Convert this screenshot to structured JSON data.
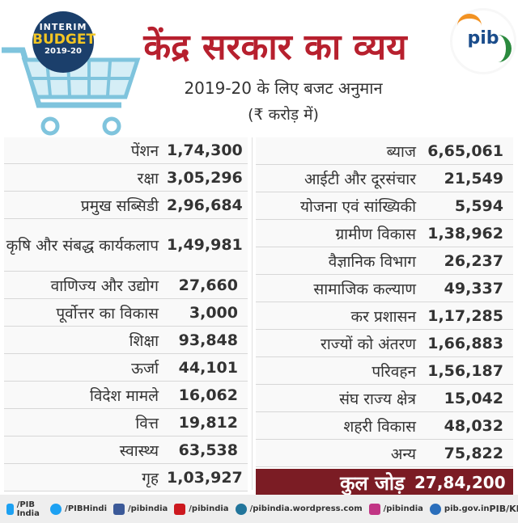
{
  "header": {
    "badge_line1": "INTERIM",
    "badge_line2": "BUDGET",
    "badge_line3": "2019-20",
    "title": "केंद्र सरकार का व्यय",
    "subtitle": "2019-20 के लिए बजट अनुमान",
    "unit": "(₹ करोड़ में)",
    "logo_text": "pib"
  },
  "left_rows": [
    {
      "label": "पेंशन",
      "value": "1,74,300"
    },
    {
      "label": "रक्षा",
      "value": "3,05,296"
    },
    {
      "label": "प्रमुख सब्सिडी",
      "value": "2,96,684"
    },
    {
      "label": "कृषि और संबद्ध कार्यकलाप",
      "value": "1,49,981"
    },
    {
      "label": "वाणिज्य और उद्योग",
      "value": "27,660"
    },
    {
      "label": "पूर्वोत्तर का विकास",
      "value": "3,000"
    },
    {
      "label": "शिक्षा",
      "value": "93,848"
    },
    {
      "label": "ऊर्जा",
      "value": "44,101"
    },
    {
      "label": "विदेश मामले",
      "value": "16,062"
    },
    {
      "label": "वित्त",
      "value": "19,812"
    },
    {
      "label": "स्वास्थ्य",
      "value": "63,538"
    },
    {
      "label": "गृह",
      "value": "1,03,927"
    }
  ],
  "right_rows": [
    {
      "label": "ब्याज",
      "value": "6,65,061"
    },
    {
      "label": "आईटी और दूरसंचार",
      "value": "21,549"
    },
    {
      "label": "योजना एवं सांख्यिकी",
      "value": "5,594"
    },
    {
      "label": "ग्रामीण विकास",
      "value": "1,38,962"
    },
    {
      "label": "वैज्ञानिक विभाग",
      "value": "26,237"
    },
    {
      "label": "सामाजिक कल्याण",
      "value": "49,337"
    },
    {
      "label": "कर प्रशासन",
      "value": "1,17,285"
    },
    {
      "label": "राज्यों को अंतरण",
      "value": "1,66,883"
    },
    {
      "label": "परिवहन",
      "value": "1,56,187"
    },
    {
      "label": "संघ राज्य क्षेत्र",
      "value": "15,042"
    },
    {
      "label": "शहरी विकास",
      "value": "48,032"
    },
    {
      "label": "अन्य",
      "value": "75,822"
    }
  ],
  "total": {
    "label": "कुल जोड़",
    "value": "27,84,200"
  },
  "footer": {
    "items": [
      "/PIB India",
      "/PIBHindi",
      "/pibindia",
      "/pibindia",
      "/pibindia.wordpress.com",
      "/pibindia",
      "pib.gov.in"
    ],
    "credit": "PIB/KBK"
  },
  "colors": {
    "title": "#b7202e",
    "total_bg": "#7b1c24",
    "cart": "#7fc4dd",
    "badge": "#1b3f6b"
  }
}
